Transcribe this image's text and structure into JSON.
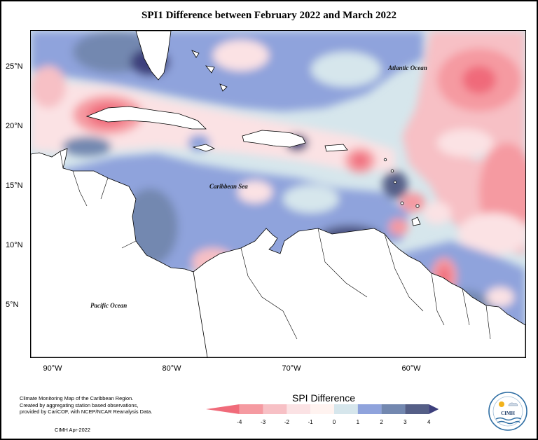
{
  "title": "SPI1 Difference between February 2022 and March 2022",
  "map": {
    "labels": [
      {
        "name": "atlantic-ocean-label",
        "text": "Atlantic Ocean"
      },
      {
        "name": "caribbean-sea-label",
        "text": "Caribbean Sea"
      },
      {
        "name": "pacific-ocean-label",
        "text": "Pacific Ocean"
      }
    ],
    "lat_ticks": [
      "25°N",
      "20°N",
      "15°N",
      "10°N",
      "5°N"
    ],
    "lon_ticks": [
      "90°W",
      "80°W",
      "70°W",
      "60°W"
    ]
  },
  "legend": {
    "title": "SPI Difference",
    "ticks": [
      "-4",
      "-3",
      "-2",
      "-1",
      "0",
      "1",
      "2",
      "3",
      "4"
    ],
    "colors": [
      "#f06b7a",
      "#f59aa1",
      "#f7c0c5",
      "#fbe2e4",
      "#fff3f0",
      "#d6e6ec",
      "#8fa3dc",
      "#7388b0",
      "#555f87",
      "#3c3f7c"
    ]
  },
  "credit": {
    "line1": "Climate Monitoring Map of the Caribbean Region.",
    "line2": "Created by aggregating station based observations,",
    "line3": "provided by CariCOF, with NCEP/NCAR Reanalysis Data.",
    "date": "CIMH Apr-2022"
  },
  "logo": {
    "text": "CIMH"
  }
}
